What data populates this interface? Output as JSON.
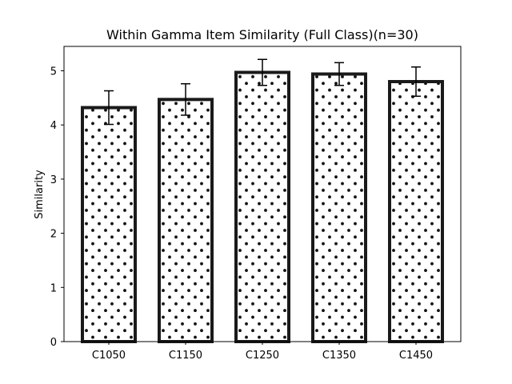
{
  "chart_data": {
    "type": "bar",
    "title": "Within Gamma Item Similarity (Full Class)(n=30)",
    "xlabel": "",
    "ylabel": "Similarity",
    "categories": [
      "C1050",
      "C1150",
      "C1250",
      "C1350",
      "C1450"
    ],
    "values": [
      4.32,
      4.47,
      4.97,
      4.94,
      4.8
    ],
    "error": [
      0.31,
      0.29,
      0.24,
      0.21,
      0.27
    ],
    "ylim": [
      0,
      5.45
    ],
    "yticks": [
      0,
      1,
      2,
      3,
      4,
      5
    ],
    "grid": false,
    "legend": "none",
    "bar_fill": "#ffffff",
    "bar_edge": "#1a1a1a",
    "hatch": "dots"
  }
}
